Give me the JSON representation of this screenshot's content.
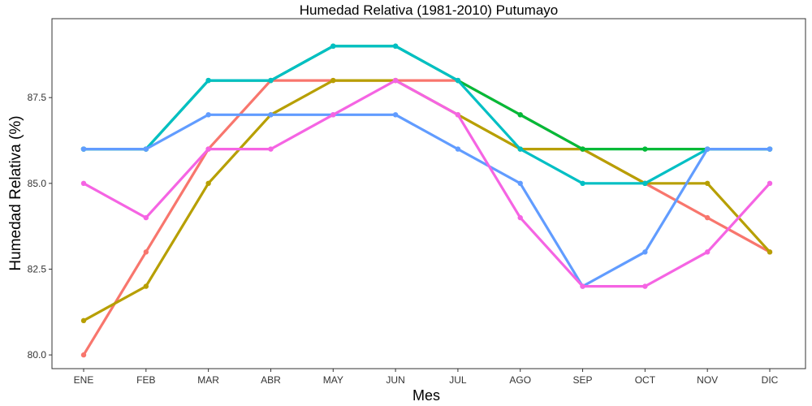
{
  "chart_data": {
    "type": "line",
    "title": "Humedad Relativa (1981-2010)  Putumayo",
    "xlabel": "Mes",
    "ylabel": "Humedad Relativa   (%)",
    "categories": [
      "ENE",
      "FEB",
      "MAR",
      "ABR",
      "MAY",
      "JUN",
      "JUL",
      "AGO",
      "SEP",
      "OCT",
      "NOV",
      "DIC"
    ],
    "yticks": [
      "80.0",
      "82.5",
      "85.0",
      "87.5"
    ],
    "ylim": [
      79.6,
      89.8
    ],
    "grid": false,
    "legend": "none",
    "series": [
      {
        "color": "#F8766D",
        "values": [
          80,
          83,
          86,
          88,
          88,
          88,
          88,
          87,
          86,
          85,
          84,
          83
        ]
      },
      {
        "color": "#B79F00",
        "values": [
          81,
          82,
          85,
          87,
          88,
          88,
          87,
          86,
          86,
          85,
          85,
          83
        ]
      },
      {
        "color": "#00BA38",
        "values": [
          86,
          86,
          88,
          88,
          89,
          89,
          88,
          87,
          86,
          86,
          86,
          86
        ]
      },
      {
        "color": "#00BFC4",
        "values": [
          86,
          86,
          88,
          88,
          89,
          89,
          88,
          86,
          85,
          85,
          86,
          86
        ]
      },
      {
        "color": "#619CFF",
        "values": [
          86,
          86,
          87,
          87,
          87,
          87,
          86,
          85,
          82,
          83,
          86,
          86
        ]
      },
      {
        "color": "#F564E3",
        "values": [
          85,
          84,
          86,
          86,
          87,
          88,
          87,
          84,
          82,
          82,
          83,
          85
        ]
      }
    ]
  }
}
